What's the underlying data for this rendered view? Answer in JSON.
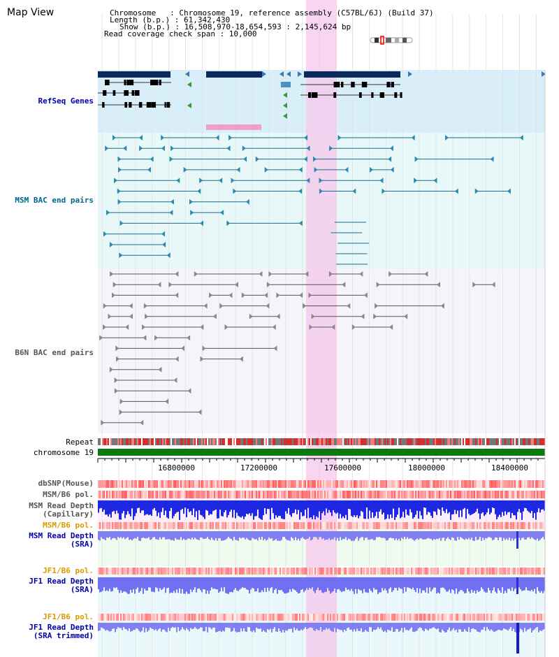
{
  "header": {
    "title": "Map View",
    "info_lines": [
      "Chromosome   : Chromosome 19, reference assembly (C57BL/6J) (Build 37)",
      "Length (b.p.) : 61,342,430",
      "Show (b.p.) : 16,508,970-18,654,593 : 2,145,624 bp",
      "Read coverage check span : 10,000"
    ]
  },
  "tracks": {
    "refseq": "RefSeq Genes",
    "msm_bac": "MSM BAC end pairs",
    "b6n_bac": "B6N BAC end pairs",
    "repeat": "Repeat",
    "chromosome": "chromosome 19",
    "dbsnp": "dbSNP(Mouse)",
    "msm_b6_pol": "MSM/B6 pol.",
    "msm_read_depth_cap_1": "MSM Read Depth",
    "msm_read_depth_cap_2": "(Capillary)",
    "msm_b6_pol_2": "MSM/B6 pol.",
    "msm_read_depth_sra_1": "MSM Read Depth",
    "msm_read_depth_sra_2": "(SRA)",
    "jf1_b6_pol": "JF1/B6 pol.",
    "jf1_read_depth_1": "JF1 Read Depth",
    "jf1_read_depth_2": "(SRA)",
    "jf1_b6_pol_2": "JF1/B6 pol.",
    "jf1_trim_1": "JF1 Read Depth",
    "jf1_trim_2": "(SRA trimmed)"
  },
  "axis": {
    "ticks": [
      "16800000",
      "17200000",
      "17600000",
      "18000000",
      "18400000"
    ]
  },
  "colors": {
    "gene_blue": "#0a2a5e",
    "refseq_bg": "#d8eef8",
    "msm_bg": "#e8f8f8",
    "b6n_bg": "#f4f4fa",
    "highlight": "#f5c8ec",
    "chromosome_green": "#0a7a10",
    "label_blue": "#0000aa",
    "label_teal": "#006688",
    "label_gray": "#555555",
    "label_orange": "#dd9900"
  }
}
